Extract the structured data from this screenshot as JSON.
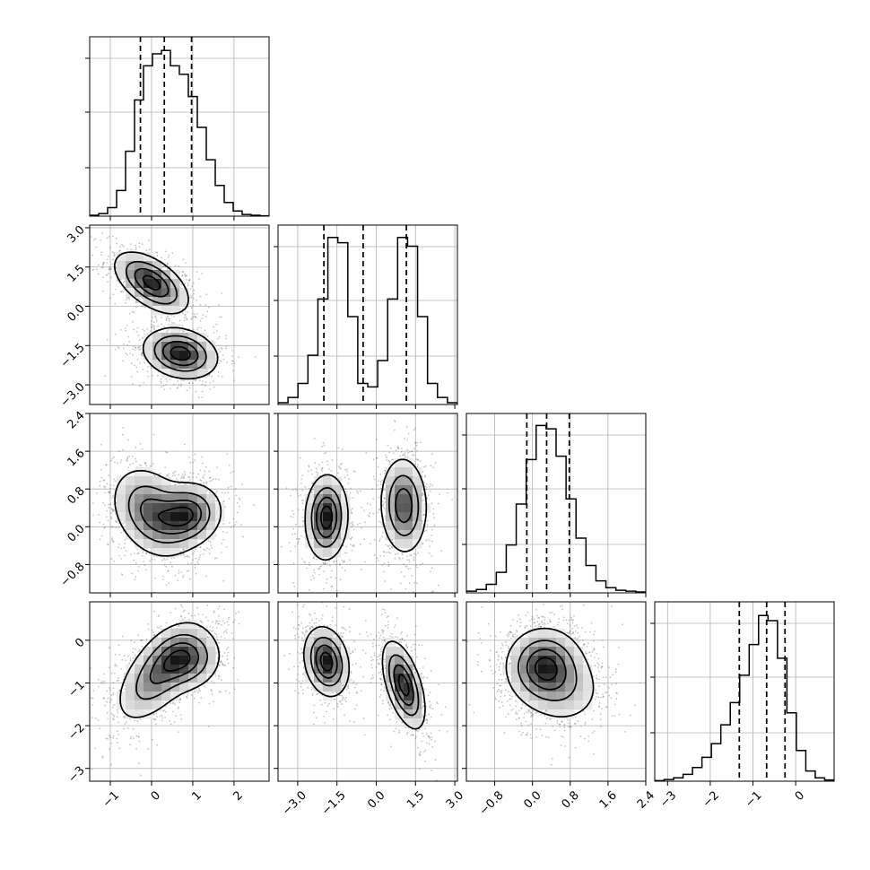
{
  "chart_data": {
    "type": "corner",
    "params": [
      {
        "ticks": [
          -1,
          0,
          1,
          2
        ],
        "tick_labels": [
          "−1",
          "0",
          "1",
          "2"
        ],
        "range": [
          -1.5,
          2.85
        ]
      },
      {
        "ticks": [
          -3.0,
          -1.5,
          0.0,
          1.5,
          3.0
        ],
        "tick_labels": [
          "−3.0",
          "−1.5",
          "0.0",
          "1.5",
          "3.0"
        ],
        "range": [
          -3.75,
          3.1
        ]
      },
      {
        "ticks": [
          -0.8,
          0.0,
          0.8,
          1.6,
          2.4
        ],
        "tick_labels": [
          "−0.8",
          "0.0",
          "0.8",
          "1.6",
          "2.4"
        ],
        "range": [
          -1.4,
          2.4
        ]
      },
      {
        "ticks": [
          -3,
          -2,
          -1,
          0
        ],
        "tick_labels": [
          "−3",
          "−2",
          "−1",
          "0"
        ],
        "range": [
          -3.3,
          0.9
        ]
      }
    ],
    "histograms": [
      {
        "edges_range": [
          -1.5,
          2.85
        ],
        "counts": [
          0.5,
          1.5,
          5,
          15,
          38,
          68,
          88,
          95,
          97,
          88,
          83,
          70,
          52,
          33,
          18,
          8,
          3,
          1,
          0.5,
          0.2
        ],
        "quantiles": [
          -0.27,
          0.31,
          0.97
        ],
        "ylim": [
          0,
          105
        ]
      },
      {
        "edges_range": [
          -3.75,
          3.1
        ],
        "counts": [
          1,
          4,
          12,
          28,
          60,
          95,
          92,
          50,
          12,
          10,
          25,
          60,
          95,
          90,
          50,
          12,
          4,
          1
        ],
        "quantiles": [
          -2.0,
          -0.5,
          1.15
        ],
        "ylim": [
          0,
          102
        ]
      },
      {
        "edges_range": [
          -1.4,
          2.4
        ],
        "counts": [
          1,
          2,
          5,
          12,
          28,
          52,
          78,
          98,
          96,
          80,
          55,
          32,
          16,
          7,
          3,
          1.5,
          1,
          0.5
        ],
        "quantiles": [
          -0.12,
          0.3,
          0.78
        ],
        "ylim": [
          0,
          105
        ]
      },
      {
        "edges_range": [
          -3.3,
          0.9
        ],
        "counts": [
          0.3,
          1,
          2,
          4,
          8,
          14,
          22,
          33,
          46,
          62,
          80,
          97,
          94,
          72,
          40,
          18,
          6,
          2,
          0.7
        ],
        "quantiles": [
          -1.32,
          -0.68,
          -0.25
        ],
        "ylim": [
          0,
          105
        ]
      }
    ],
    "pairs": [
      {
        "i": 1,
        "j": 0,
        "components": [
          {
            "mean": [
              0.0,
              0.9
            ],
            "sd": [
              0.42,
              0.55
            ],
            "rho": -0.55,
            "weight": 0.5
          },
          {
            "mean": [
              0.7,
              -1.8
            ],
            "sd": [
              0.42,
              0.45
            ],
            "rho": -0.2,
            "weight": 0.5
          }
        ]
      },
      {
        "i": 2,
        "j": 0,
        "components": [
          {
            "mean": [
              0.0,
              0.3
            ],
            "sd": [
              0.45,
              0.45
            ],
            "rho": -0.3,
            "weight": 0.55
          },
          {
            "mean": [
              0.85,
              0.25
            ],
            "sd": [
              0.4,
              0.32
            ],
            "rho": 0.1,
            "weight": 0.45
          }
        ]
      },
      {
        "i": 2,
        "j": 1,
        "components": [
          {
            "mean": [
              -1.9,
              0.2
            ],
            "sd": [
              0.38,
              0.42
            ],
            "rho": 0.05,
            "weight": 0.5
          },
          {
            "mean": [
              1.05,
              0.45
            ],
            "sd": [
              0.42,
              0.48
            ],
            "rho": -0.05,
            "weight": 0.5
          }
        ]
      },
      {
        "i": 3,
        "j": 0,
        "components": [
          {
            "mean": [
              0.2,
              -0.75
            ],
            "sd": [
              0.5,
              0.55
            ],
            "rho": 0.6,
            "weight": 0.6
          },
          {
            "mean": [
              0.85,
              -0.45
            ],
            "sd": [
              0.4,
              0.35
            ],
            "rho": 0.1,
            "weight": 0.4
          }
        ]
      },
      {
        "i": 3,
        "j": 1,
        "components": [
          {
            "mean": [
              -1.9,
              -0.5
            ],
            "sd": [
              0.4,
              0.38
            ],
            "rho": -0.2,
            "weight": 0.5
          },
          {
            "mean": [
              1.05,
              -1.05
            ],
            "sd": [
              0.38,
              0.48
            ],
            "rho": -0.55,
            "weight": 0.5
          }
        ]
      },
      {
        "i": 3,
        "j": 2,
        "components": [
          {
            "mean": [
              0.25,
              -0.6
            ],
            "sd": [
              0.38,
              0.42
            ],
            "rho": 0.0,
            "weight": 0.7
          },
          {
            "mean": [
              0.6,
              -1.1
            ],
            "sd": [
              0.45,
              0.45
            ],
            "rho": -0.1,
            "weight": 0.3
          }
        ]
      }
    ],
    "grid": true,
    "colors": {
      "hist_line": "#000000",
      "grid": "#b0b0b0",
      "points": "#555555"
    }
  }
}
